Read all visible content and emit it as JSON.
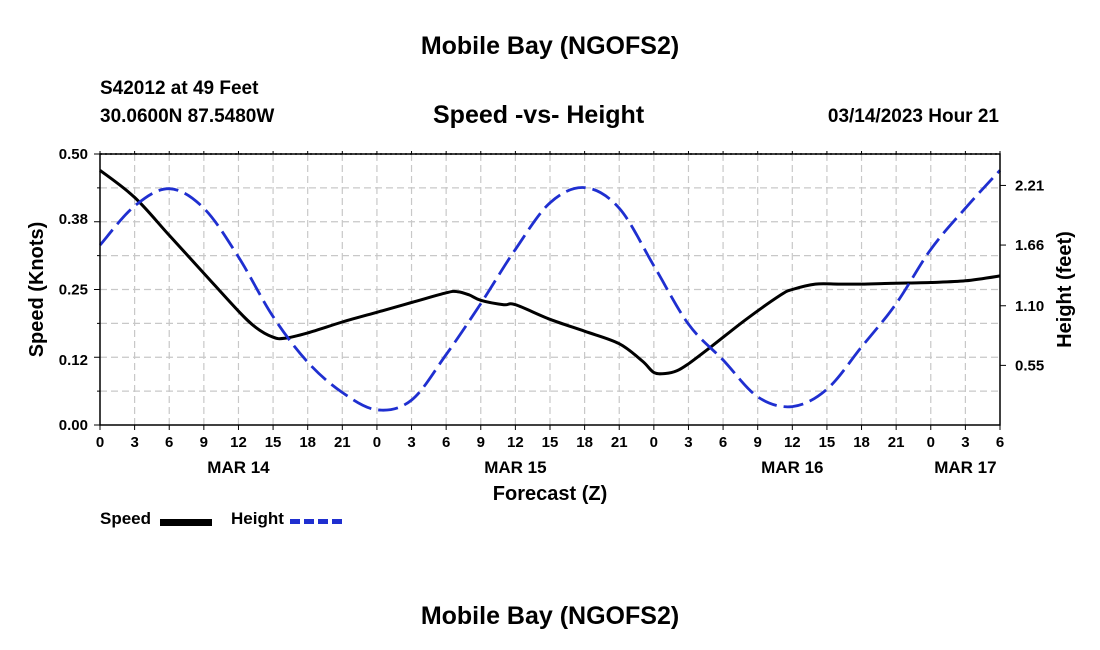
{
  "header": {
    "title": "Mobile Bay (NGOFS2)",
    "station": "S42012 at 49 Feet",
    "coordinates": "30.0600N  87.5480W",
    "chart_title": "Speed -vs- Height",
    "datetime": "03/14/2023 Hour 21"
  },
  "footer": {
    "title": "Mobile Bay (NGOFS2)"
  },
  "legend": {
    "speed_label": "Speed",
    "height_label": "Height"
  },
  "colors": {
    "speed": "#000000",
    "height": "#1f2fd0",
    "grid": "#c8c8c8"
  },
  "chart_data": {
    "type": "line",
    "title": "Speed -vs- Height",
    "xlabel": "Forecast (Z)",
    "ylabel": "Speed (Knots)",
    "y2label": "Height (feet)",
    "x_unit": "hours since MAR 14 00Z",
    "xlim": [
      0,
      78
    ],
    "ylim": [
      0,
      0.5
    ],
    "y2lim": [
      0,
      2.5
    ],
    "x_ticks": [
      0,
      3,
      6,
      9,
      12,
      15,
      18,
      21,
      24,
      27,
      30,
      33,
      36,
      39,
      42,
      45,
      48,
      51,
      54,
      57,
      60,
      63,
      66,
      69,
      72,
      75,
      78
    ],
    "x_tick_labels": [
      "0",
      "3",
      "6",
      "9",
      "12",
      "15",
      "18",
      "21",
      "0",
      "3",
      "6",
      "9",
      "12",
      "15",
      "18",
      "21",
      "0",
      "3",
      "6",
      "9",
      "12",
      "15",
      "18",
      "21",
      "0",
      "3",
      "6"
    ],
    "date_labels": [
      {
        "x": 12,
        "label": "MAR 14"
      },
      {
        "x": 36,
        "label": "MAR 15"
      },
      {
        "x": 60,
        "label": "MAR 16"
      },
      {
        "x": 75,
        "label": "MAR 17"
      }
    ],
    "y_ticks": [
      0.0,
      0.12,
      0.25,
      0.38,
      0.5
    ],
    "y_tick_labels": [
      "0.00",
      "0.12",
      "0.25",
      "0.38",
      "0.50"
    ],
    "y2_ticks": [
      0.55,
      1.1,
      1.66,
      2.21
    ],
    "y2_tick_labels": [
      "0.55",
      "1.10",
      "1.66",
      "2.21"
    ],
    "grid": true,
    "series": [
      {
        "name": "Speed",
        "axis": "left",
        "style": "solid",
        "x": [
          0,
          3,
          6,
          9,
          12,
          13.5,
          15,
          16,
          18,
          21,
          24,
          27,
          30,
          31,
          32,
          33,
          35,
          36,
          39,
          42,
          45,
          47,
          48,
          49,
          50,
          51,
          53,
          56,
          59,
          60,
          62,
          64,
          66,
          68,
          70,
          72,
          75,
          78
        ],
        "values": [
          0.47,
          0.42,
          0.35,
          0.28,
          0.21,
          0.18,
          0.162,
          0.16,
          0.17,
          0.19,
          0.208,
          0.226,
          0.244,
          0.246,
          0.24,
          0.23,
          0.222,
          0.222,
          0.195,
          0.173,
          0.15,
          0.118,
          0.097,
          0.095,
          0.1,
          0.113,
          0.145,
          0.195,
          0.24,
          0.25,
          0.26,
          0.26,
          0.26,
          0.261,
          0.262,
          0.263,
          0.266,
          0.275
        ]
      },
      {
        "name": "Height",
        "axis": "right",
        "style": "dashed",
        "x": [
          0,
          3,
          6,
          9,
          12,
          15,
          18,
          21,
          24,
          27,
          30,
          33,
          36,
          39,
          42,
          45,
          48,
          51,
          54,
          57,
          60,
          63,
          66,
          69,
          72,
          75,
          78
        ],
        "values": [
          1.66,
          2.02,
          2.18,
          2.0,
          1.55,
          1.0,
          0.58,
          0.3,
          0.14,
          0.23,
          0.65,
          1.12,
          1.62,
          2.05,
          2.19,
          2.0,
          1.47,
          0.93,
          0.6,
          0.26,
          0.17,
          0.33,
          0.72,
          1.12,
          1.62,
          2.0,
          2.35
        ]
      }
    ]
  }
}
